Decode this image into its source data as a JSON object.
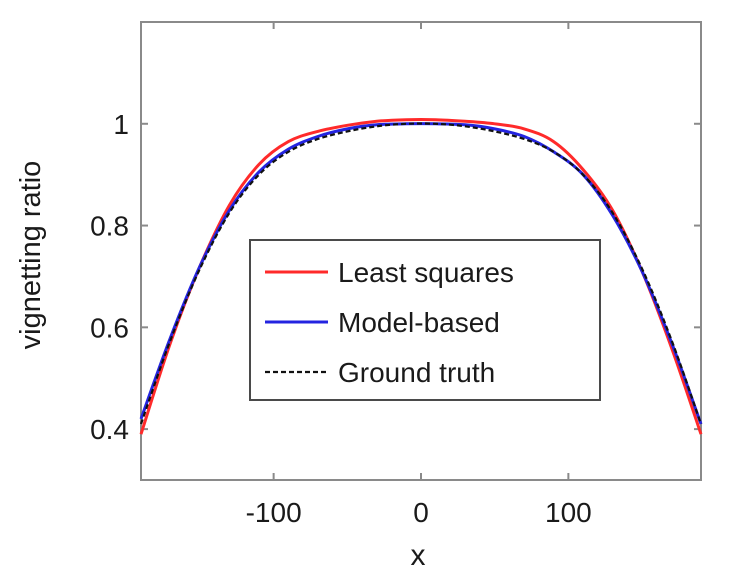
{
  "chart_data": {
    "type": "line",
    "title": "",
    "xlabel": "x",
    "ylabel": "vignetting ratio",
    "xlim": [
      -190,
      190
    ],
    "ylim": [
      0.3,
      1.2
    ],
    "x_ticks": [
      -100,
      0,
      100
    ],
    "x_tick_labels": [
      "-100",
      "0",
      "100"
    ],
    "y_ticks": [
      0.4,
      0.6,
      0.8,
      1.0
    ],
    "y_tick_labels": [
      "0.4",
      "0.6",
      "0.8",
      "1"
    ],
    "grid": false,
    "legend_position": "center",
    "series": [
      {
        "name": "Least squares",
        "color": "#ff2a2a",
        "style": "solid",
        "x": [
          -190,
          -170,
          -150,
          -130,
          -110,
          -90,
          -70,
          -50,
          -30,
          -10,
          10,
          30,
          50,
          70,
          90,
          110,
          130,
          150,
          170,
          190
        ],
        "y": [
          0.39,
          0.57,
          0.72,
          0.84,
          0.92,
          0.965,
          0.985,
          0.997,
          1.005,
          1.008,
          1.008,
          1.005,
          1.0,
          0.99,
          0.965,
          0.91,
          0.83,
          0.71,
          0.56,
          0.39
        ]
      },
      {
        "name": "Model-based",
        "color": "#2424e0",
        "style": "solid",
        "x": [
          -190,
          -170,
          -150,
          -130,
          -110,
          -90,
          -70,
          -50,
          -30,
          -10,
          10,
          30,
          50,
          70,
          90,
          110,
          130,
          150,
          170,
          190
        ],
        "y": [
          0.42,
          0.58,
          0.72,
          0.83,
          0.905,
          0.95,
          0.975,
          0.99,
          0.998,
          1.0,
          1.0,
          0.998,
          0.99,
          0.975,
          0.945,
          0.9,
          0.82,
          0.71,
          0.57,
          0.41
        ]
      },
      {
        "name": "Ground truth",
        "color": "#111111",
        "style": "dashed",
        "x": [
          -190,
          -170,
          -150,
          -130,
          -110,
          -90,
          -70,
          -50,
          -30,
          -10,
          10,
          30,
          50,
          70,
          90,
          110,
          130,
          150,
          170,
          190
        ],
        "y": [
          0.41,
          0.575,
          0.715,
          0.825,
          0.9,
          0.945,
          0.97,
          0.985,
          0.995,
          1.0,
          1.0,
          0.995,
          0.985,
          0.97,
          0.945,
          0.9,
          0.825,
          0.715,
          0.575,
          0.41
        ]
      }
    ]
  }
}
